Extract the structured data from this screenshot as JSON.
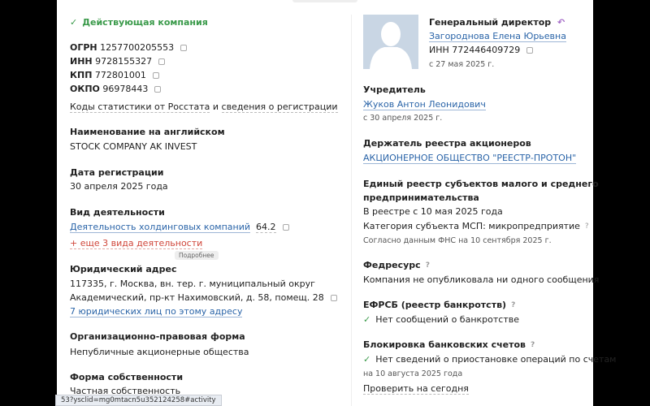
{
  "status": {
    "label": "Действующая компания",
    "color": "#3a9a4a"
  },
  "ids": [
    {
      "label": "ОГРН",
      "value": "1257700205553"
    },
    {
      "label": "ИНН",
      "value": "9728155327"
    },
    {
      "label": "КПП",
      "value": "772801001"
    },
    {
      "label": "ОКПО",
      "value": "96978443"
    }
  ],
  "rosstat_link": {
    "part1": "Коды статистики от Росстата",
    "part2": "и",
    "part3": "сведения о регистрации"
  },
  "english_name": {
    "title": "Наименование на английском",
    "value": "STOCK COMPANY AK INVEST"
  },
  "registration": {
    "title": "Дата регистрации",
    "value": "30 апреля 2025 года"
  },
  "activity": {
    "title": "Вид деятельности",
    "main": "Деятельность холдинговых компаний",
    "code": "64.2",
    "more": "+ еще 3 вида деятельности",
    "tooltip": "Подробнее"
  },
  "address": {
    "title": "Юридический адрес",
    "line1": "117335, г. Москва, вн. тер. г. муниципальный округ",
    "line2": "Академический, пр-кт Нахимовский, д. 58, помещ. 28",
    "link": "7 юридических лиц по этому адресу"
  },
  "legal_form": {
    "title": "Организационно-правовая форма",
    "value": "Непубличные акционерные общества"
  },
  "ownership": {
    "title": "Форма собственности",
    "value": "Частная собственность"
  },
  "director": {
    "title": "Генеральный директор",
    "name": "Загороднова Елена Юрьевна",
    "inn": "ИНН 772446409729",
    "since": "с 27 мая 2025 г."
  },
  "founder": {
    "title": "Учредитель",
    "name": "Жуков Антон Леонидович",
    "since": "с 30 апреля 2025 г."
  },
  "registrar": {
    "title": "Держатель реестра акционеров",
    "name": "АКЦИОНЕРНОЕ ОБЩЕСТВО \"РЕЕСТР-ПРОТОН\""
  },
  "msp": {
    "title1": "Единый реестр субъектов малого и среднего",
    "title2": "предпринимательства",
    "since": "В реестре с 10 мая 2025 года",
    "category": "Категория субъекта МСП: микропредприятие",
    "source": "Согласно данным ФНС на 10 сентября 2025 г."
  },
  "fedresurs": {
    "title": "Федресурс",
    "value": "Компания не опубликовала ни одного сообщения"
  },
  "efrsb": {
    "title": "ЕФРСБ (реестр банкротств)",
    "value": "Нет сообщений о банкротстве"
  },
  "blocking": {
    "title": "Блокировка банковских счетов",
    "value": "Нет сведений о приостановке операций по счетам",
    "date": "на 10 августа 2025 года",
    "check_link": "Проверить на сегодня"
  },
  "help_mark": "?",
  "statusbar_url": "53?ysclid=mg0mtacn5u352124258#activity"
}
